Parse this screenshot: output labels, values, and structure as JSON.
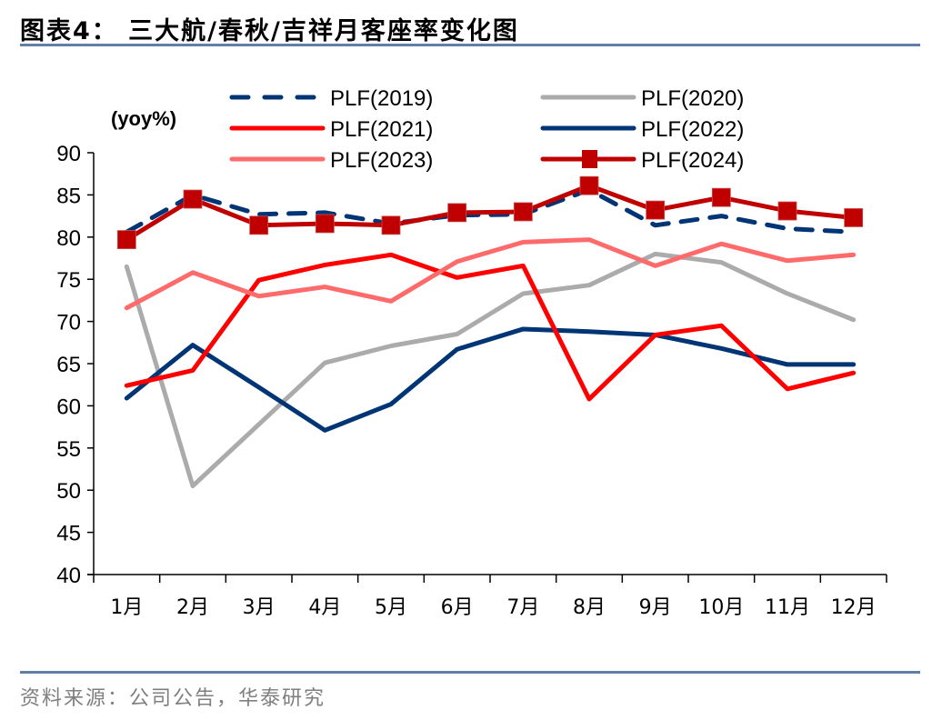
{
  "header": {
    "title": "图表4：  三大航/春秋/吉祥月客座率变化图"
  },
  "footer": {
    "source": "资料来源：公司公告，华泰研究"
  },
  "chart_data": {
    "type": "line",
    "title": "三大航/春秋/吉祥月客座率变化图",
    "unit_label": "(yoy%)",
    "xlabel": "",
    "ylabel": "(yoy%)",
    "ylim": [
      40,
      90
    ],
    "yticks": [
      90,
      85,
      80,
      75,
      70,
      65,
      60,
      55,
      50,
      45,
      40
    ],
    "categories": [
      "1月",
      "2月",
      "3月",
      "4月",
      "5月",
      "6月",
      "7月",
      "8月",
      "9月",
      "10月",
      "11月",
      "12月"
    ],
    "grid": false,
    "legend_position": "top",
    "series": [
      {
        "name": "PLF(2019)",
        "color": "#003575",
        "style": "dashed",
        "marker": "none",
        "values": [
          80.6,
          85.0,
          82.7,
          82.9,
          81.6,
          82.6,
          82.7,
          85.6,
          81.4,
          82.5,
          81.0,
          80.6
        ]
      },
      {
        "name": "PLF(2020)",
        "color": "#ababab",
        "style": "solid",
        "marker": "none",
        "values": [
          76.5,
          50.5,
          57.8,
          65.1,
          67.1,
          68.5,
          73.3,
          74.3,
          78.0,
          77.0,
          73.3,
          70.2
        ]
      },
      {
        "name": "PLF(2021)",
        "color": "#ff0000",
        "style": "solid",
        "marker": "none",
        "values": [
          62.4,
          64.2,
          74.9,
          76.7,
          77.9,
          75.2,
          76.6,
          60.8,
          68.4,
          69.5,
          62.0,
          63.9
        ]
      },
      {
        "name": "PLF(2022)",
        "color": "#003575",
        "style": "solid",
        "marker": "none",
        "values": [
          60.9,
          67.2,
          62.2,
          57.1,
          60.2,
          66.7,
          69.1,
          68.8,
          68.4,
          66.8,
          64.9,
          64.9
        ]
      },
      {
        "name": "PLF(2023)",
        "color": "#ff6b6b",
        "style": "solid",
        "marker": "none",
        "values": [
          71.6,
          75.8,
          73.0,
          74.1,
          72.4,
          77.1,
          79.4,
          79.7,
          76.6,
          79.2,
          77.2,
          77.9
        ]
      },
      {
        "name": "PLF(2024)",
        "color": "#c00000",
        "style": "solid",
        "marker": "square",
        "values": [
          79.7,
          84.5,
          81.4,
          81.6,
          81.4,
          82.9,
          83.0,
          86.1,
          83.2,
          84.7,
          83.1,
          82.3
        ]
      }
    ]
  }
}
